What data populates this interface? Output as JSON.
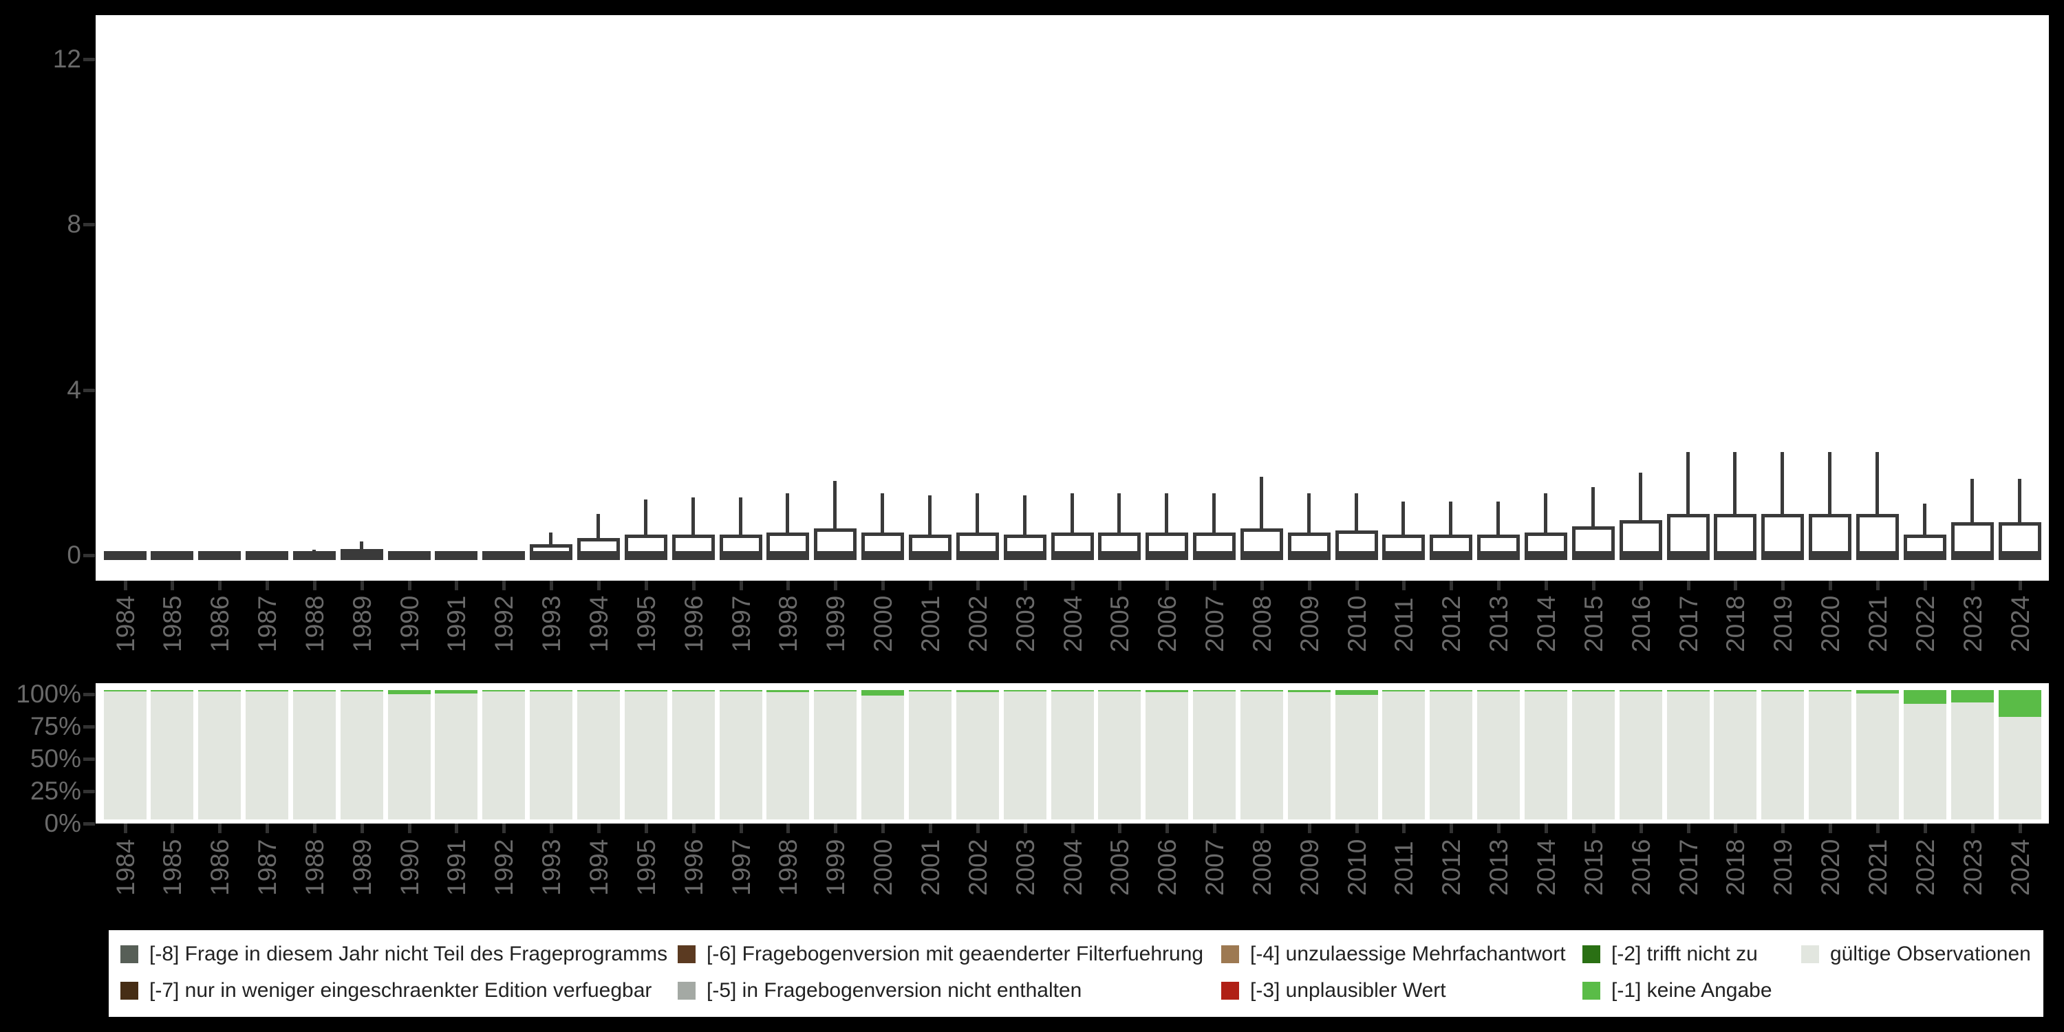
{
  "page": {
    "background": "#000000",
    "panel_background": "#ffffff",
    "axis_label_color": "#6a6a6a",
    "tick_color": "#333333"
  },
  "chart_data": [
    {
      "type": "boxplot",
      "title": "",
      "xlabel": "",
      "ylabel": "",
      "ylim": [
        0,
        13
      ],
      "yticks": [
        0,
        4,
        8,
        12
      ],
      "grid": false,
      "box_stroke_color": "#3a3a3a",
      "box_fill_color": "#ffffff",
      "note": "per-year distribution; all medians, Q1 and lower whiskers at 0",
      "boxes": [
        {
          "year": "1984",
          "min": 0,
          "q1": 0,
          "median": 0,
          "q3": 0,
          "max": 0
        },
        {
          "year": "1985",
          "min": 0,
          "q1": 0,
          "median": 0,
          "q3": 0,
          "max": 0
        },
        {
          "year": "1986",
          "min": 0,
          "q1": 0,
          "median": 0,
          "q3": 0,
          "max": 0
        },
        {
          "year": "1987",
          "min": 0,
          "q1": 0,
          "median": 0,
          "q3": 0,
          "max": 0
        },
        {
          "year": "1988",
          "min": 0,
          "q1": 0,
          "median": 0,
          "q3": 0.06,
          "max": 0.14
        },
        {
          "year": "1989",
          "min": 0,
          "q1": 0,
          "median": 0,
          "q3": 0.15,
          "max": 0.33
        },
        {
          "year": "1990",
          "min": 0,
          "q1": 0,
          "median": 0,
          "q3": 0,
          "max": 0
        },
        {
          "year": "1991",
          "min": 0,
          "q1": 0,
          "median": 0,
          "q3": 0,
          "max": 0
        },
        {
          "year": "1992",
          "min": 0,
          "q1": 0,
          "median": 0,
          "q3": 0.04,
          "max": 0.1
        },
        {
          "year": "1993",
          "min": 0,
          "q1": 0,
          "median": 0,
          "q3": 0.27,
          "max": 0.55
        },
        {
          "year": "1994",
          "min": 0,
          "q1": 0,
          "median": 0,
          "q3": 0.42,
          "max": 1.0
        },
        {
          "year": "1995",
          "min": 0,
          "q1": 0,
          "median": 0,
          "q3": 0.5,
          "max": 1.35
        },
        {
          "year": "1996",
          "min": 0,
          "q1": 0,
          "median": 0,
          "q3": 0.5,
          "max": 1.4
        },
        {
          "year": "1997",
          "min": 0,
          "q1": 0,
          "median": 0,
          "q3": 0.5,
          "max": 1.4
        },
        {
          "year": "1998",
          "min": 0,
          "q1": 0,
          "median": 0,
          "q3": 0.55,
          "max": 1.5
        },
        {
          "year": "1999",
          "min": 0,
          "q1": 0,
          "median": 0,
          "q3": 0.65,
          "max": 1.8
        },
        {
          "year": "2000",
          "min": 0,
          "q1": 0,
          "median": 0,
          "q3": 0.55,
          "max": 1.5
        },
        {
          "year": "2001",
          "min": 0,
          "q1": 0,
          "median": 0,
          "q3": 0.5,
          "max": 1.45
        },
        {
          "year": "2002",
          "min": 0,
          "q1": 0,
          "median": 0,
          "q3": 0.55,
          "max": 1.5
        },
        {
          "year": "2003",
          "min": 0,
          "q1": 0,
          "median": 0,
          "q3": 0.5,
          "max": 1.45
        },
        {
          "year": "2004",
          "min": 0,
          "q1": 0,
          "median": 0,
          "q3": 0.55,
          "max": 1.5
        },
        {
          "year": "2005",
          "min": 0,
          "q1": 0,
          "median": 0,
          "q3": 0.55,
          "max": 1.5
        },
        {
          "year": "2006",
          "min": 0,
          "q1": 0,
          "median": 0,
          "q3": 0.55,
          "max": 1.5
        },
        {
          "year": "2007",
          "min": 0,
          "q1": 0,
          "median": 0,
          "q3": 0.55,
          "max": 1.5
        },
        {
          "year": "2008",
          "min": 0,
          "q1": 0,
          "median": 0,
          "q3": 0.65,
          "max": 1.9
        },
        {
          "year": "2009",
          "min": 0,
          "q1": 0,
          "median": 0,
          "q3": 0.55,
          "max": 1.5
        },
        {
          "year": "2010",
          "min": 0,
          "q1": 0,
          "median": 0,
          "q3": 0.6,
          "max": 1.5
        },
        {
          "year": "2011",
          "min": 0,
          "q1": 0,
          "median": 0,
          "q3": 0.5,
          "max": 1.3
        },
        {
          "year": "2012",
          "min": 0,
          "q1": 0,
          "median": 0,
          "q3": 0.5,
          "max": 1.3
        },
        {
          "year": "2013",
          "min": 0,
          "q1": 0,
          "median": 0,
          "q3": 0.5,
          "max": 1.3
        },
        {
          "year": "2014",
          "min": 0,
          "q1": 0,
          "median": 0,
          "q3": 0.55,
          "max": 1.5
        },
        {
          "year": "2015",
          "min": 0,
          "q1": 0,
          "median": 0,
          "q3": 0.7,
          "max": 1.65
        },
        {
          "year": "2016",
          "min": 0,
          "q1": 0,
          "median": 0,
          "q3": 0.85,
          "max": 2.0
        },
        {
          "year": "2017",
          "min": 0,
          "q1": 0,
          "median": 0,
          "q3": 1.0,
          "max": 2.5
        },
        {
          "year": "2018",
          "min": 0,
          "q1": 0,
          "median": 0,
          "q3": 1.0,
          "max": 2.5
        },
        {
          "year": "2019",
          "min": 0,
          "q1": 0,
          "median": 0,
          "q3": 1.0,
          "max": 2.5
        },
        {
          "year": "2020",
          "min": 0,
          "q1": 0,
          "median": 0,
          "q3": 1.0,
          "max": 2.5
        },
        {
          "year": "2021",
          "min": 0,
          "q1": 0,
          "median": 0,
          "q3": 1.0,
          "max": 2.5
        },
        {
          "year": "2022",
          "min": 0,
          "q1": 0,
          "median": 0,
          "q3": 0.5,
          "max": 1.25
        },
        {
          "year": "2023",
          "min": 0,
          "q1": 0,
          "median": 0,
          "q3": 0.8,
          "max": 1.85
        },
        {
          "year": "2024",
          "min": 0,
          "q1": 0,
          "median": 0,
          "q3": 0.8,
          "max": 1.85
        }
      ]
    },
    {
      "type": "bar",
      "stacked": true,
      "unit": "percent",
      "title": "",
      "yticks": [
        "0%",
        "25%",
        "50%",
        "75%",
        "100%"
      ],
      "ylim": [
        0,
        100
      ],
      "categories": [
        "1984",
        "1985",
        "1986",
        "1987",
        "1988",
        "1989",
        "1990",
        "1991",
        "1992",
        "1993",
        "1994",
        "1995",
        "1996",
        "1997",
        "1998",
        "1999",
        "2000",
        "2001",
        "2002",
        "2003",
        "2004",
        "2005",
        "2006",
        "2007",
        "2008",
        "2009",
        "2010",
        "2011",
        "2012",
        "2013",
        "2014",
        "2015",
        "2016",
        "2017",
        "2018",
        "2019",
        "2020",
        "2021",
        "2022",
        "2023",
        "2024"
      ],
      "series": [
        {
          "name": "gültige Observationen",
          "color": "#e2e6df",
          "values": [
            99.4,
            98.7,
            99.0,
            98.7,
            99.4,
            99.4,
            97.0,
            97.2,
            99.7,
            99.4,
            99.4,
            99.5,
            99.5,
            99.1,
            98.2,
            99.2,
            95.5,
            99.2,
            98.2,
            99.7,
            99.7,
            99.6,
            98.4,
            99.3,
            99.7,
            98.2,
            96.5,
            99.3,
            99.7,
            99.5,
            99.6,
            99.5,
            99.5,
            99.5,
            99.5,
            99.5,
            98.8,
            97.5,
            89.5,
            90.5,
            79.0
          ]
        },
        {
          "name": "[-1] keine Angabe",
          "color": "#5abc47",
          "values": [
            0.6,
            1.3,
            1.0,
            1.3,
            0.6,
            0.6,
            3.0,
            2.8,
            0.3,
            0.6,
            0.6,
            0.5,
            0.5,
            0.9,
            1.8,
            0.8,
            4.5,
            0.8,
            1.8,
            0.3,
            0.3,
            0.4,
            1.6,
            0.7,
            0.3,
            1.8,
            3.5,
            0.7,
            0.3,
            0.5,
            0.4,
            0.5,
            0.5,
            0.5,
            0.5,
            0.5,
            1.2,
            2.5,
            10.5,
            9.5,
            21.0
          ]
        }
      ],
      "legend_position": "bottom"
    }
  ],
  "legend": {
    "entries": [
      {
        "code": "-8",
        "label": "[-8] Frage in diesem Jahr nicht Teil des Frageprogramms",
        "color": "#575f57"
      },
      {
        "code": "-7",
        "label": "[-7] nur in weniger eingeschraenkter Edition verfuegbar",
        "color": "#462d15"
      },
      {
        "code": "-6",
        "label": "[-6] Fragebogenversion mit geaenderter Filterfuehrung",
        "color": "#5b3a21"
      },
      {
        "code": "-5",
        "label": "[-5] in Fragebogenversion nicht enthalten",
        "color": "#a4a9a4"
      },
      {
        "code": "-4",
        "label": "[-4] unzulaessige Mehrfachantwort",
        "color": "#9d7952"
      },
      {
        "code": "-3",
        "label": "[-3] unplausibler Wert",
        "color": "#b02016"
      },
      {
        "code": "-2",
        "label": "[-2] trifft nicht zu",
        "color": "#2a7014"
      },
      {
        "code": "-1",
        "label": "[-1] keine Angabe",
        "color": "#5abc47"
      },
      {
        "code": "valid",
        "label": "gültige Observationen",
        "color": "#e2e6df"
      }
    ]
  }
}
